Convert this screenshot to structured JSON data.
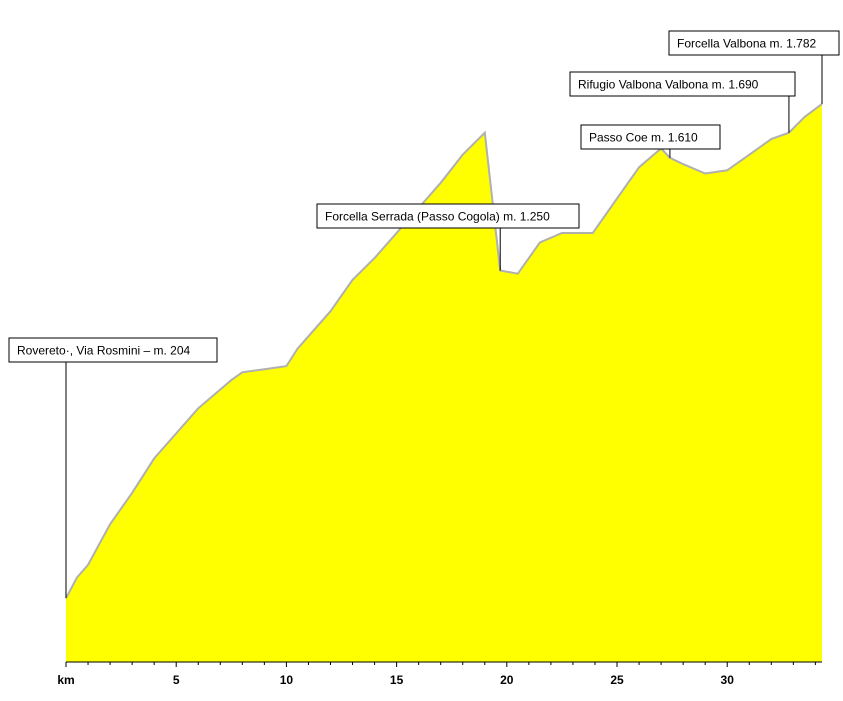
{
  "chart_data": {
    "type": "area",
    "title": "",
    "xlabel": "km",
    "ylabel": "",
    "xlim": [
      0,
      34.3
    ],
    "ylim": [
      0,
      2050
    ],
    "x_ticks": [
      5,
      10,
      15,
      20,
      25,
      30
    ],
    "fill_color": "#ffff00",
    "line_color": "#b0b0b0",
    "series": [
      {
        "x": [
          0,
          0.5,
          1,
          2,
          3,
          4,
          5,
          6,
          7,
          7.5,
          8,
          9,
          10,
          10.5,
          11,
          12,
          13,
          14,
          15,
          16,
          17,
          18,
          19,
          19.7,
          20.5,
          21.5,
          22.5,
          23.9,
          25,
          26,
          27,
          27.4,
          28,
          29,
          30,
          31,
          32,
          32.8,
          33.5,
          34.3
        ],
        "y": [
          204,
          270,
          310,
          440,
          540,
          650,
          730,
          810,
          870,
          900,
          925,
          935,
          945,
          1000,
          1040,
          1120,
          1220,
          1290,
          1370,
          1450,
          1530,
          1620,
          1690,
          1250,
          1240,
          1340,
          1370,
          1370,
          1480,
          1580,
          1640,
          1610,
          1590,
          1560,
          1570,
          1620,
          1670,
          1690,
          1740,
          1782
        ]
      }
    ],
    "annotations": [
      {
        "text": "Rovereto·, Via Rosmini – m. 204",
        "x": 0,
        "y": 204
      },
      {
        "text": "Forcella Serrada (Passo Cogola) m. 1.250",
        "x": 19.7,
        "y": 1250
      },
      {
        "text": "Passo Coe m. 1.610",
        "x": 27.4,
        "y": 1610
      },
      {
        "text": "Rifugio Valbona Valbona m. 1.690",
        "x": 32.8,
        "y": 1690
      },
      {
        "text": "Forcella Valbona m. 1.782",
        "x": 34.3,
        "y": 1782
      }
    ]
  }
}
